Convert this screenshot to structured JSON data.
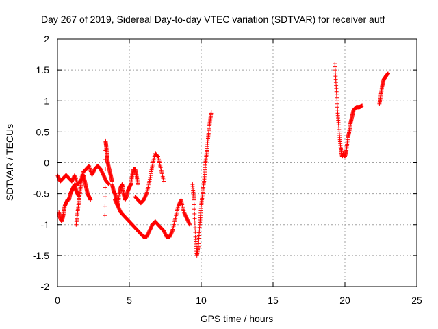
{
  "chart_data": {
    "type": "scatter",
    "title": "Day 267 of 2019, Sidereal Day-to-day VTEC variation (SDTVAR) for receiver autf",
    "xlabel": "GPS time / hours",
    "ylabel": "SDTVAR / TECUs",
    "xlim": [
      0,
      25
    ],
    "ylim": [
      -2,
      2
    ],
    "xticks": [
      0,
      5,
      10,
      15,
      20,
      25
    ],
    "yticks": [
      -2,
      -1.5,
      -1,
      -0.5,
      0,
      0.5,
      1,
      1.5,
      2
    ],
    "grid": true,
    "marker": "+",
    "color": "#ff0000",
    "series": [
      {
        "name": "SDTVAR",
        "segments": [
          {
            "x": [
              0.0,
              0.2,
              0.4,
              0.6,
              0.8,
              1.0,
              1.2,
              1.4,
              1.6,
              1.8,
              2.0,
              2.2,
              2.4,
              2.6,
              2.8,
              3.0,
              3.2,
              3.4,
              3.6
            ],
            "y": [
              -0.2,
              -0.3,
              -0.25,
              -0.2,
              -0.25,
              -0.3,
              -0.2,
              -0.35,
              -0.3,
              -0.15,
              -0.1,
              -0.05,
              -0.2,
              -0.1,
              -0.05,
              -0.1,
              -0.2,
              -0.3,
              -0.35
            ]
          },
          {
            "x": [
              0.1,
              0.2,
              0.3,
              0.4,
              0.5,
              0.6,
              0.7,
              0.8,
              0.9,
              1.0,
              1.1,
              1.2,
              1.3,
              1.4,
              1.5
            ],
            "y": [
              -0.8,
              -0.9,
              -0.95,
              -0.85,
              -0.7,
              -0.65,
              -0.6,
              -0.6,
              -0.5,
              -0.45,
              -0.4,
              -0.35,
              -0.45,
              -0.5,
              -0.55
            ]
          },
          {
            "x": [
              1.3,
              1.4,
              1.5,
              1.6,
              1.7,
              1.8,
              1.9,
              2.0,
              2.1,
              2.2,
              2.3
            ],
            "y": [
              -1.0,
              -0.8,
              -0.6,
              -0.4,
              -0.25,
              -0.2,
              -0.3,
              -0.4,
              -0.5,
              -0.55,
              -0.6
            ]
          },
          {
            "x": [
              3.3,
              3.35,
              3.4,
              3.45,
              3.5,
              3.6,
              3.7,
              3.8
            ],
            "y": [
              -0.85,
              0.35,
              0.25,
              0.1,
              0.0,
              -0.1,
              -0.2,
              -0.3
            ]
          },
          {
            "x": [
              3.8,
              3.9,
              4.0,
              4.1,
              4.2,
              4.3,
              4.4,
              4.5,
              4.6,
              4.7,
              4.8,
              4.9,
              5.0,
              5.1,
              5.2,
              5.3,
              5.4,
              5.5,
              5.6
            ],
            "y": [
              -0.35,
              -0.45,
              -0.5,
              -0.6,
              -0.7,
              -0.5,
              -0.4,
              -0.35,
              -0.5,
              -0.6,
              -0.55,
              -0.45,
              -0.4,
              -0.35,
              -0.2,
              -0.1,
              -0.1,
              -0.2,
              -0.35
            ]
          },
          {
            "x": [
              4.0,
              4.2,
              4.4,
              4.6,
              4.8,
              5.0,
              5.2,
              5.4,
              5.6,
              5.8,
              6.0,
              6.2,
              6.4,
              6.6,
              6.8
            ],
            "y": [
              -0.6,
              -0.7,
              -0.8,
              -0.85,
              -0.9,
              -0.95,
              -1.0,
              -1.05,
              -1.1,
              -1.15,
              -1.2,
              -1.2,
              -1.1,
              -1.0,
              -0.95
            ]
          },
          {
            "x": [
              5.4,
              5.6,
              5.8,
              6.0,
              6.2,
              6.4,
              6.6,
              6.8,
              7.0,
              7.2,
              7.4
            ],
            "y": [
              -0.55,
              -0.6,
              -0.65,
              -0.6,
              -0.5,
              -0.3,
              -0.05,
              0.15,
              0.1,
              -0.1,
              -0.3
            ]
          },
          {
            "x": [
              6.8,
              7.0,
              7.2,
              7.4,
              7.6,
              7.8,
              8.0,
              8.2,
              8.4,
              8.6,
              8.8,
              9.0,
              9.2
            ],
            "y": [
              -0.95,
              -1.0,
              -1.05,
              -1.1,
              -1.2,
              -1.2,
              -1.1,
              -0.9,
              -0.7,
              -0.6,
              -0.8,
              -0.9,
              -1.0
            ]
          },
          {
            "x": [
              9.4,
              9.5,
              9.6,
              9.7,
              9.8,
              9.9,
              10.0,
              10.1,
              10.2,
              10.3,
              10.4,
              10.5,
              10.6,
              10.7
            ],
            "y": [
              -0.35,
              -0.6,
              -1.2,
              -1.5,
              -1.35,
              -1.0,
              -0.7,
              -0.5,
              -0.3,
              0.0,
              0.2,
              0.45,
              0.65,
              0.82
            ]
          },
          {
            "x": [
              19.3,
              19.4,
              19.5,
              19.6,
              19.7,
              19.8,
              19.9,
              20.0,
              20.1,
              20.2,
              20.3,
              20.4,
              20.5,
              20.6,
              20.7,
              20.8,
              21.0,
              21.2
            ],
            "y": [
              1.6,
              1.2,
              0.8,
              0.5,
              0.25,
              0.1,
              0.15,
              0.1,
              0.2,
              0.4,
              0.5,
              0.65,
              0.75,
              0.85,
              0.88,
              0.9,
              0.9,
              0.92
            ]
          },
          {
            "x": [
              22.4,
              22.5,
              22.6,
              22.7,
              22.8,
              22.9,
              23.0
            ],
            "y": [
              0.95,
              1.1,
              1.25,
              1.35,
              1.38,
              1.42,
              1.44
            ]
          }
        ]
      }
    ]
  }
}
